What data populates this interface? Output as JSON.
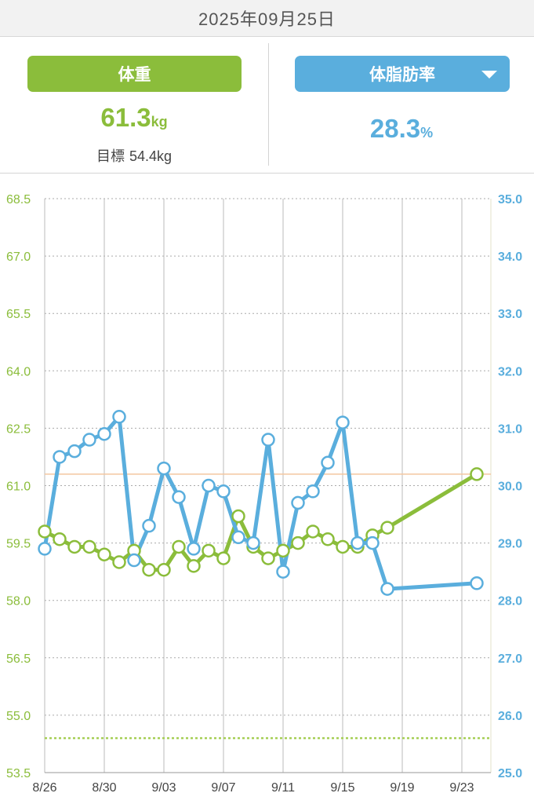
{
  "header": {
    "date": "2025年09月25日"
  },
  "summary": {
    "weight": {
      "label": "体重",
      "value": "61.3",
      "unit": "kg"
    },
    "target": {
      "label": "目標",
      "value": "54.4kg"
    },
    "fat": {
      "label": "体脂肪率",
      "value": "28.3",
      "unit": "%"
    }
  },
  "colors": {
    "weight": "#8bbd3b",
    "fat": "#5aaedd",
    "target_line": "#a6cf55",
    "current_line": "#f3c7a0"
  },
  "chart_data": {
    "type": "line",
    "x_tick_labels": [
      "8/26",
      "8/30",
      "9/03",
      "9/07",
      "9/11",
      "9/15",
      "9/19",
      "9/23"
    ],
    "x_tick_day_offsets": [
      0,
      4,
      8,
      12,
      16,
      20,
      24,
      28
    ],
    "left_axis": {
      "ticks": [
        "68.5",
        "67.0",
        "65.5",
        "64.0",
        "62.5",
        "61.0",
        "59.5",
        "58.0",
        "56.5",
        "55.0",
        "53.5"
      ],
      "range": [
        53.5,
        68.5
      ]
    },
    "right_axis": {
      "ticks": [
        "35.0",
        "34.0",
        "33.0",
        "32.0",
        "31.0",
        "30.0",
        "29.0",
        "28.0",
        "27.0",
        "26.0",
        "25.0"
      ],
      "range": [
        25.0,
        35.0
      ]
    },
    "target_weight": 54.4,
    "current_weight": 61.3,
    "series": [
      {
        "key": "weight",
        "axis": "left",
        "x": [
          "8/26",
          "8/27",
          "8/28",
          "8/29",
          "8/30",
          "8/31",
          "9/01",
          "9/02",
          "9/03",
          "9/04",
          "9/05",
          "9/06",
          "9/07",
          "9/08",
          "9/09",
          "9/10",
          "9/11",
          "9/12",
          "9/13",
          "9/14",
          "9/15",
          "9/16",
          "9/17",
          "9/18",
          "9/24"
        ],
        "values": [
          59.8,
          59.6,
          59.4,
          59.4,
          59.2,
          59.0,
          59.3,
          58.8,
          58.8,
          59.4,
          58.9,
          59.3,
          59.1,
          60.2,
          59.4,
          59.1,
          59.3,
          59.5,
          59.8,
          59.6,
          59.4,
          59.4,
          59.7,
          59.9,
          61.3
        ]
      },
      {
        "key": "fat",
        "axis": "right",
        "x": [
          "8/26",
          "8/27",
          "8/28",
          "8/29",
          "8/30",
          "8/31",
          "9/01",
          "9/02",
          "9/03",
          "9/04",
          "9/05",
          "9/06",
          "9/07",
          "9/08",
          "9/09",
          "9/10",
          "9/11",
          "9/12",
          "9/13",
          "9/14",
          "9/15",
          "9/16",
          "9/17",
          "9/18",
          "9/24"
        ],
        "values": [
          28.9,
          30.5,
          30.6,
          30.8,
          30.9,
          31.2,
          28.7,
          29.3,
          30.3,
          29.8,
          28.9,
          30.0,
          29.9,
          29.1,
          29.0,
          30.8,
          28.5,
          29.7,
          29.9,
          30.4,
          31.1,
          29.0,
          29.0,
          28.2,
          28.3
        ]
      }
    ]
  }
}
